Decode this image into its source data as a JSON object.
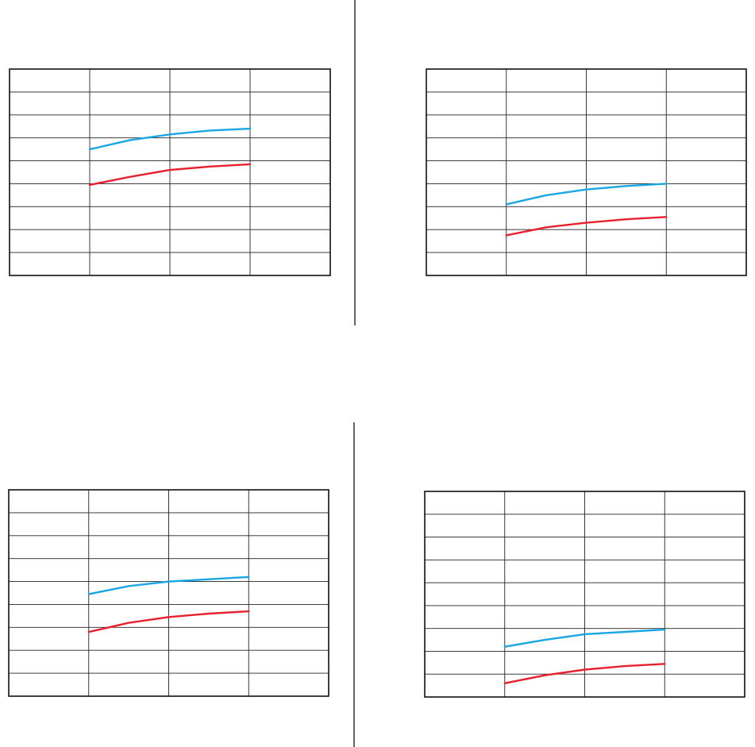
{
  "colors": {
    "background": "#ffffff",
    "grid": "#222222",
    "frame": "#111111",
    "separator": "#222222",
    "series_a": "#1aa6e3",
    "series_b": "#e8202e"
  },
  "chart_data": [
    {
      "type": "line",
      "title": "",
      "xlabel": "",
      "ylabel": "",
      "xlim": [
        0,
        4
      ],
      "ylim": [
        0,
        9
      ],
      "grid": true,
      "legend": "none",
      "series": [
        {
          "color": "#1aa6e3",
          "x": [
            1,
            1.5,
            2,
            2.5,
            3
          ],
          "y": [
            5.5,
            5.9,
            6.15,
            6.32,
            6.4
          ]
        },
        {
          "color": "#e8202e",
          "x": [
            1,
            1.5,
            2,
            2.5,
            3
          ],
          "y": [
            3.95,
            4.3,
            4.6,
            4.75,
            4.85
          ]
        }
      ]
    },
    {
      "type": "line",
      "title": "",
      "xlabel": "",
      "ylabel": "",
      "xlim": [
        0,
        4
      ],
      "ylim": [
        0,
        9
      ],
      "grid": true,
      "legend": "none",
      "series": [
        {
          "color": "#1aa6e3",
          "x": [
            1,
            1.5,
            2,
            2.5,
            3
          ],
          "y": [
            3.1,
            3.5,
            3.75,
            3.9,
            4.0
          ]
        },
        {
          "color": "#e8202e",
          "x": [
            1,
            1.5,
            2,
            2.5,
            3
          ],
          "y": [
            1.75,
            2.1,
            2.3,
            2.45,
            2.55
          ]
        }
      ]
    },
    {
      "type": "line",
      "title": "",
      "xlabel": "",
      "ylabel": "",
      "xlim": [
        0,
        4
      ],
      "ylim": [
        0,
        9
      ],
      "grid": true,
      "legend": "none",
      "series": [
        {
          "color": "#1aa6e3",
          "x": [
            1,
            1.5,
            2,
            2.5,
            3
          ],
          "y": [
            4.45,
            4.8,
            5.0,
            5.1,
            5.2
          ]
        },
        {
          "color": "#e8202e",
          "x": [
            1,
            1.5,
            2,
            2.5,
            3
          ],
          "y": [
            2.8,
            3.2,
            3.45,
            3.6,
            3.7
          ]
        }
      ]
    },
    {
      "type": "line",
      "title": "",
      "xlabel": "",
      "ylabel": "",
      "xlim": [
        0,
        4
      ],
      "ylim": [
        0,
        9
      ],
      "grid": true,
      "legend": "none",
      "series": [
        {
          "color": "#1aa6e3",
          "x": [
            1,
            1.5,
            2,
            2.5,
            3
          ],
          "y": [
            2.2,
            2.5,
            2.75,
            2.85,
            2.95
          ]
        },
        {
          "color": "#e8202e",
          "x": [
            1,
            1.5,
            2,
            2.5,
            3
          ],
          "y": [
            0.6,
            0.95,
            1.2,
            1.35,
            1.45
          ]
        }
      ]
    }
  ]
}
